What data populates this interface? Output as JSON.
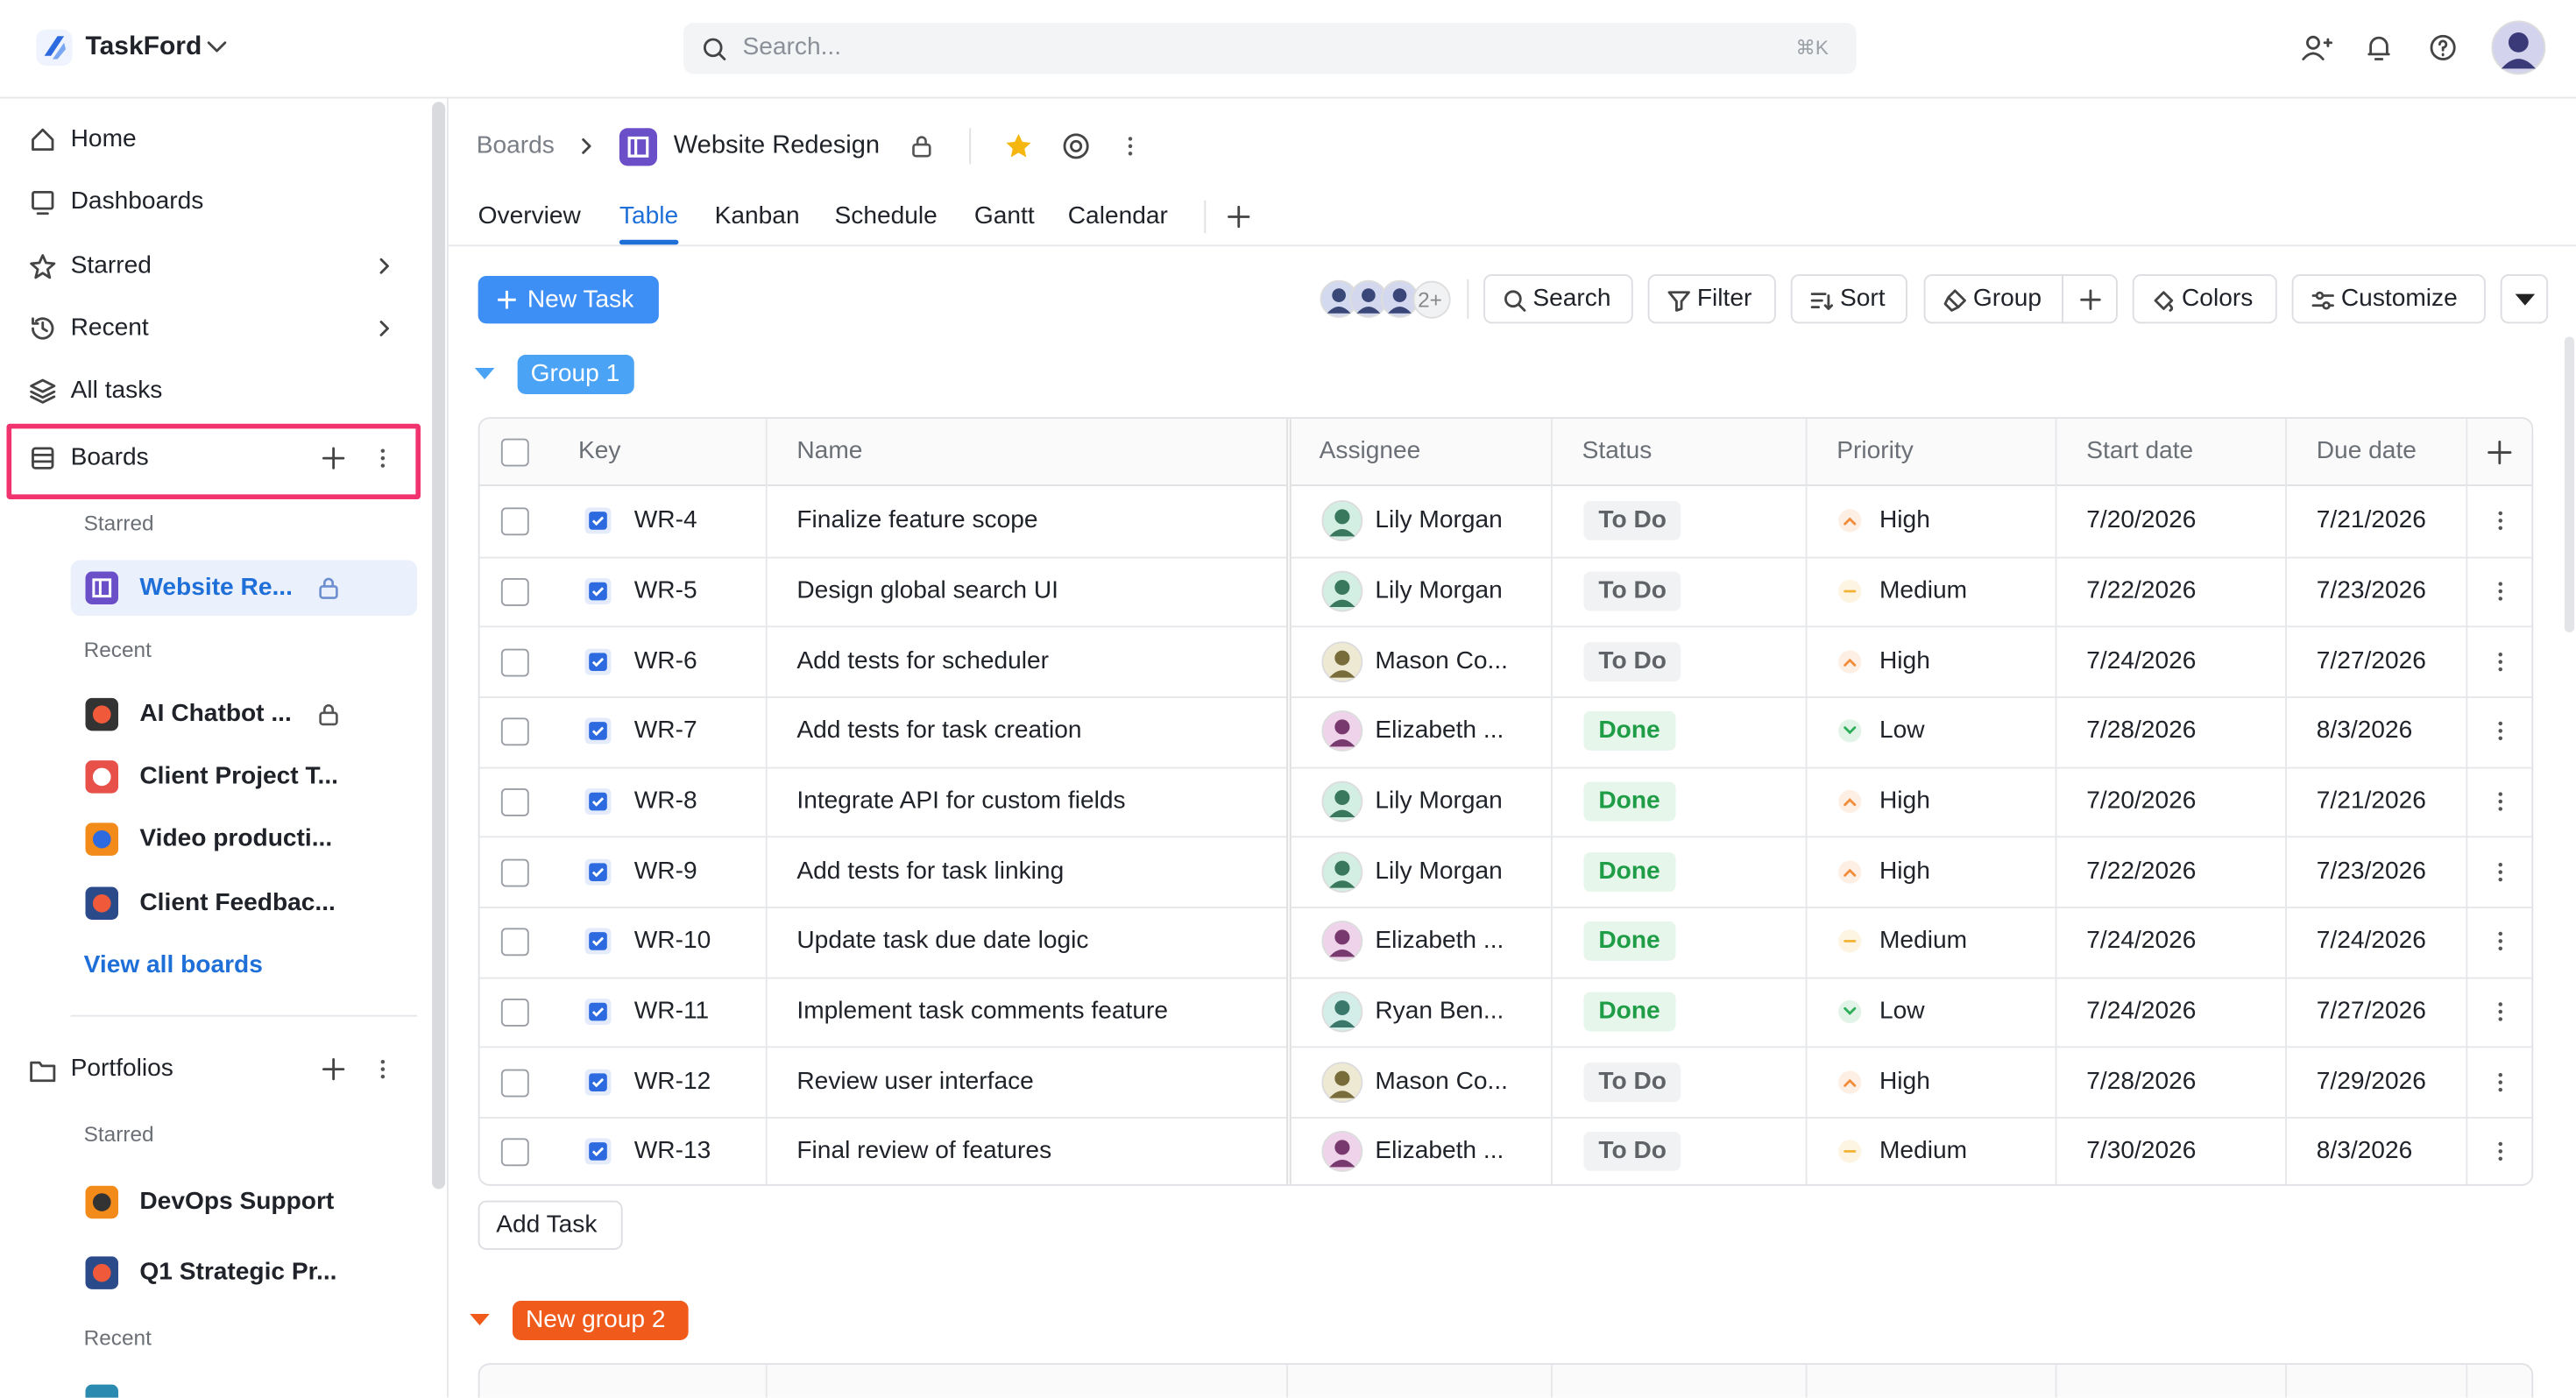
{
  "app": {
    "name": "TaskFord"
  },
  "search": {
    "placeholder": "Search...",
    "shortcut": "⌘K"
  },
  "sidebar": {
    "nav": [
      "Home",
      "Dashboards",
      "Starred",
      "Recent",
      "All tasks"
    ],
    "boards": {
      "title": "Boards",
      "starred_label": "Starred",
      "starred": [
        "Website Re..."
      ],
      "recent_label": "Recent",
      "recent": [
        "AI Chatbot ...",
        "Client Project T...",
        "Video producti...",
        "Client Feedbac..."
      ],
      "view_all": "View all boards"
    },
    "portfolios": {
      "title": "Portfolios",
      "starred_label": "Starred",
      "starred": [
        "DevOps Support",
        "Q1 Strategic Pr..."
      ],
      "recent_label": "Recent"
    }
  },
  "breadcrumb": {
    "root": "Boards",
    "board": "Website Redesign"
  },
  "tabs": [
    "Overview",
    "Table",
    "Kanban",
    "Schedule",
    "Gantt",
    "Calendar"
  ],
  "active_tab": 1,
  "toolbar": {
    "new_task": "New Task",
    "more_assignees": "2+",
    "buttons": [
      "Search",
      "Filter",
      "Sort",
      "Group",
      "Colors",
      "Customize"
    ]
  },
  "status_colors": {
    "To Do": [
      "#5f6368",
      "#f1f2f4"
    ],
    "Done": [
      "#1f9d46",
      "#e6f6eb"
    ]
  },
  "priority_icons": {
    "High": [
      "#f08c3a",
      "up"
    ],
    "Medium": [
      "#f2b233",
      "dash"
    ],
    "Low": [
      "#2fae5a",
      "down"
    ]
  },
  "groups": [
    {
      "name": "Group 1",
      "color": "#4aa3f4",
      "columns": [
        "Key",
        "Name",
        "Assignee",
        "Status",
        "Priority",
        "Start date",
        "Due date"
      ],
      "rows": [
        {
          "key": "WR-4",
          "name": "Finalize feature scope",
          "assignee": "Lily Morgan",
          "status": "To Do",
          "priority": "High",
          "start": "7/20/2026",
          "due": "7/21/2026"
        },
        {
          "key": "WR-5",
          "name": "Design global search UI",
          "assignee": "Lily Morgan",
          "status": "To Do",
          "priority": "Medium",
          "start": "7/22/2026",
          "due": "7/23/2026"
        },
        {
          "key": "WR-6",
          "name": "Add tests for scheduler",
          "assignee": "Mason Co...",
          "status": "To Do",
          "priority": "High",
          "start": "7/24/2026",
          "due": "7/27/2026"
        },
        {
          "key": "WR-7",
          "name": "Add tests for task creation",
          "assignee": "Elizabeth ...",
          "status": "Done",
          "priority": "Low",
          "start": "7/28/2026",
          "due": "8/3/2026"
        },
        {
          "key": "WR-8",
          "name": "Integrate API for custom fields",
          "assignee": "Lily Morgan",
          "status": "Done",
          "priority": "High",
          "start": "7/20/2026",
          "due": "7/21/2026"
        },
        {
          "key": "WR-9",
          "name": "Add tests for task linking",
          "assignee": "Lily Morgan",
          "status": "Done",
          "priority": "High",
          "start": "7/22/2026",
          "due": "7/23/2026"
        },
        {
          "key": "WR-10",
          "name": "Update task due date logic",
          "assignee": "Elizabeth ...",
          "status": "Done",
          "priority": "Medium",
          "start": "7/24/2026",
          "due": "7/24/2026"
        },
        {
          "key": "WR-11",
          "name": "Implement task comments feature",
          "assignee": "Ryan Ben...",
          "status": "Done",
          "priority": "Low",
          "start": "7/24/2026",
          "due": "7/27/2026"
        },
        {
          "key": "WR-12",
          "name": "Review user interface",
          "assignee": "Mason Co...",
          "status": "To Do",
          "priority": "High",
          "start": "7/28/2026",
          "due": "7/29/2026"
        },
        {
          "key": "WR-13",
          "name": "Final review of features",
          "assignee": "Elizabeth ...",
          "status": "To Do",
          "priority": "Medium",
          "start": "7/30/2026",
          "due": "8/3/2026"
        }
      ],
      "add_task": "Add Task"
    },
    {
      "name": "New group 2",
      "color": "#f05a1a"
    }
  ]
}
